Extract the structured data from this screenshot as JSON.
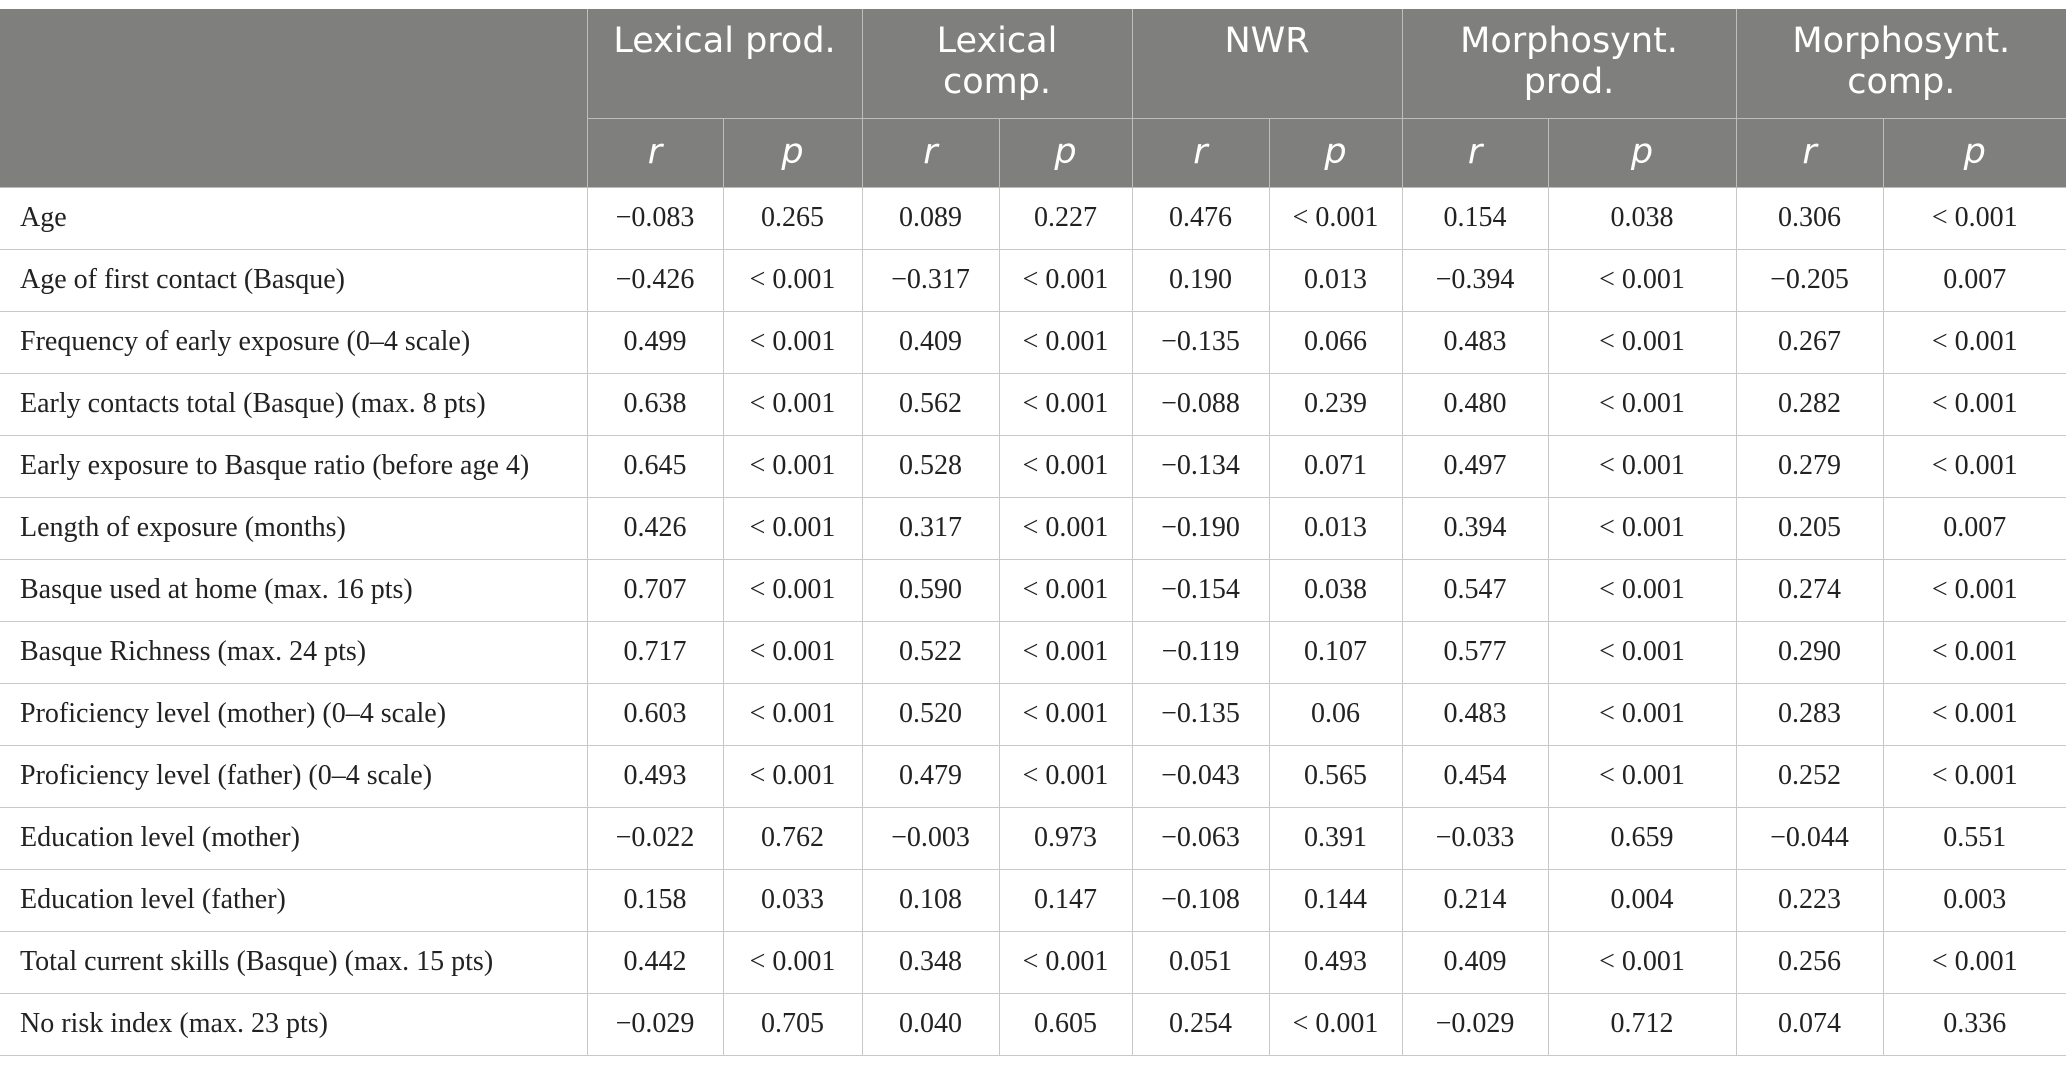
{
  "table": {
    "groups": [
      "Lexical prod.",
      "Lexical comp.",
      "NWR",
      "Morphosynt. prod.",
      "Morphosynt. comp."
    ],
    "group_lines": [
      [
        "Lexical prod."
      ],
      [
        "Lexical",
        "comp."
      ],
      [
        "NWR"
      ],
      [
        "Morphosynt.",
        "prod."
      ],
      [
        "Morphosynt.",
        "comp."
      ]
    ],
    "subheaders": [
      "r",
      "p",
      "r",
      "p",
      "r",
      "p",
      "r",
      "p",
      "r",
      "p"
    ],
    "rows": [
      {
        "label": "Age",
        "values": [
          "−0.083",
          "0.265",
          "0.089",
          "0.227",
          "0.476",
          "< 0.001",
          "0.154",
          "0.038",
          "0.306",
          "< 0.001"
        ]
      },
      {
        "label": "Age of first contact (Basque)",
        "values": [
          "−0.426",
          "< 0.001",
          "−0.317",
          "< 0.001",
          "0.190",
          "0.013",
          "−0.394",
          "< 0.001",
          "−0.205",
          "0.007"
        ]
      },
      {
        "label": "Frequency of early exposure (0–4 scale)",
        "values": [
          "0.499",
          "< 0.001",
          "0.409",
          "< 0.001",
          "−0.135",
          "0.066",
          "0.483",
          "< 0.001",
          "0.267",
          "< 0.001"
        ]
      },
      {
        "label": "Early contacts total (Basque) (max. 8 pts)",
        "values": [
          "0.638",
          "< 0.001",
          "0.562",
          "< 0.001",
          "−0.088",
          "0.239",
          "0.480",
          "< 0.001",
          "0.282",
          "< 0.001"
        ]
      },
      {
        "label": "Early exposure to Basque ratio (before age 4)",
        "values": [
          "0.645",
          "< 0.001",
          "0.528",
          "< 0.001",
          "−0.134",
          "0.071",
          "0.497",
          "< 0.001",
          "0.279",
          "< 0.001"
        ]
      },
      {
        "label": "Length of exposure (months)",
        "values": [
          "0.426",
          "< 0.001",
          "0.317",
          "< 0.001",
          "−0.190",
          "0.013",
          "0.394",
          "< 0.001",
          "0.205",
          "0.007"
        ]
      },
      {
        "label": "Basque used at home (max. 16 pts)",
        "values": [
          "0.707",
          "< 0.001",
          "0.590",
          "< 0.001",
          "−0.154",
          "0.038",
          "0.547",
          "< 0.001",
          "0.274",
          "< 0.001"
        ]
      },
      {
        "label": "Basque Richness (max. 24 pts)",
        "values": [
          "0.717",
          "< 0.001",
          "0.522",
          "< 0.001",
          "−0.119",
          "0.107",
          "0.577",
          "< 0.001",
          "0.290",
          "< 0.001"
        ]
      },
      {
        "label": "Proficiency level (mother) (0–4 scale)",
        "values": [
          "0.603",
          "< 0.001",
          "0.520",
          "< 0.001",
          "−0.135",
          "0.06",
          "0.483",
          "< 0.001",
          "0.283",
          "< 0.001"
        ]
      },
      {
        "label": "Proficiency level (father) (0–4 scale)",
        "values": [
          "0.493",
          "< 0.001",
          "0.479",
          "< 0.001",
          "−0.043",
          "0.565",
          "0.454",
          "< 0.001",
          "0.252",
          "< 0.001"
        ]
      },
      {
        "label": "Education level (mother)",
        "values": [
          "−0.022",
          "0.762",
          "−0.003",
          "0.973",
          "−0.063",
          "0.391",
          "−0.033",
          "0.659",
          "−0.044",
          "0.551"
        ]
      },
      {
        "label": "Education level (father)",
        "values": [
          "0.158",
          "0.033",
          "0.108",
          "0.147",
          "−0.108",
          "0.144",
          "0.214",
          "0.004",
          "0.223",
          "0.003"
        ]
      },
      {
        "label": "Total current skills (Basque) (max. 15 pts)",
        "values": [
          "0.442",
          "< 0.001",
          "0.348",
          "< 0.001",
          "0.051",
          "0.493",
          "0.409",
          "< 0.001",
          "0.256",
          "< 0.001"
        ]
      },
      {
        "label": "No risk index (max. 23 pts)",
        "values": [
          "−0.029",
          "0.705",
          "0.040",
          "0.605",
          "0.254",
          "< 0.001",
          "−0.029",
          "0.712",
          "0.074",
          "0.336"
        ]
      }
    ]
  }
}
